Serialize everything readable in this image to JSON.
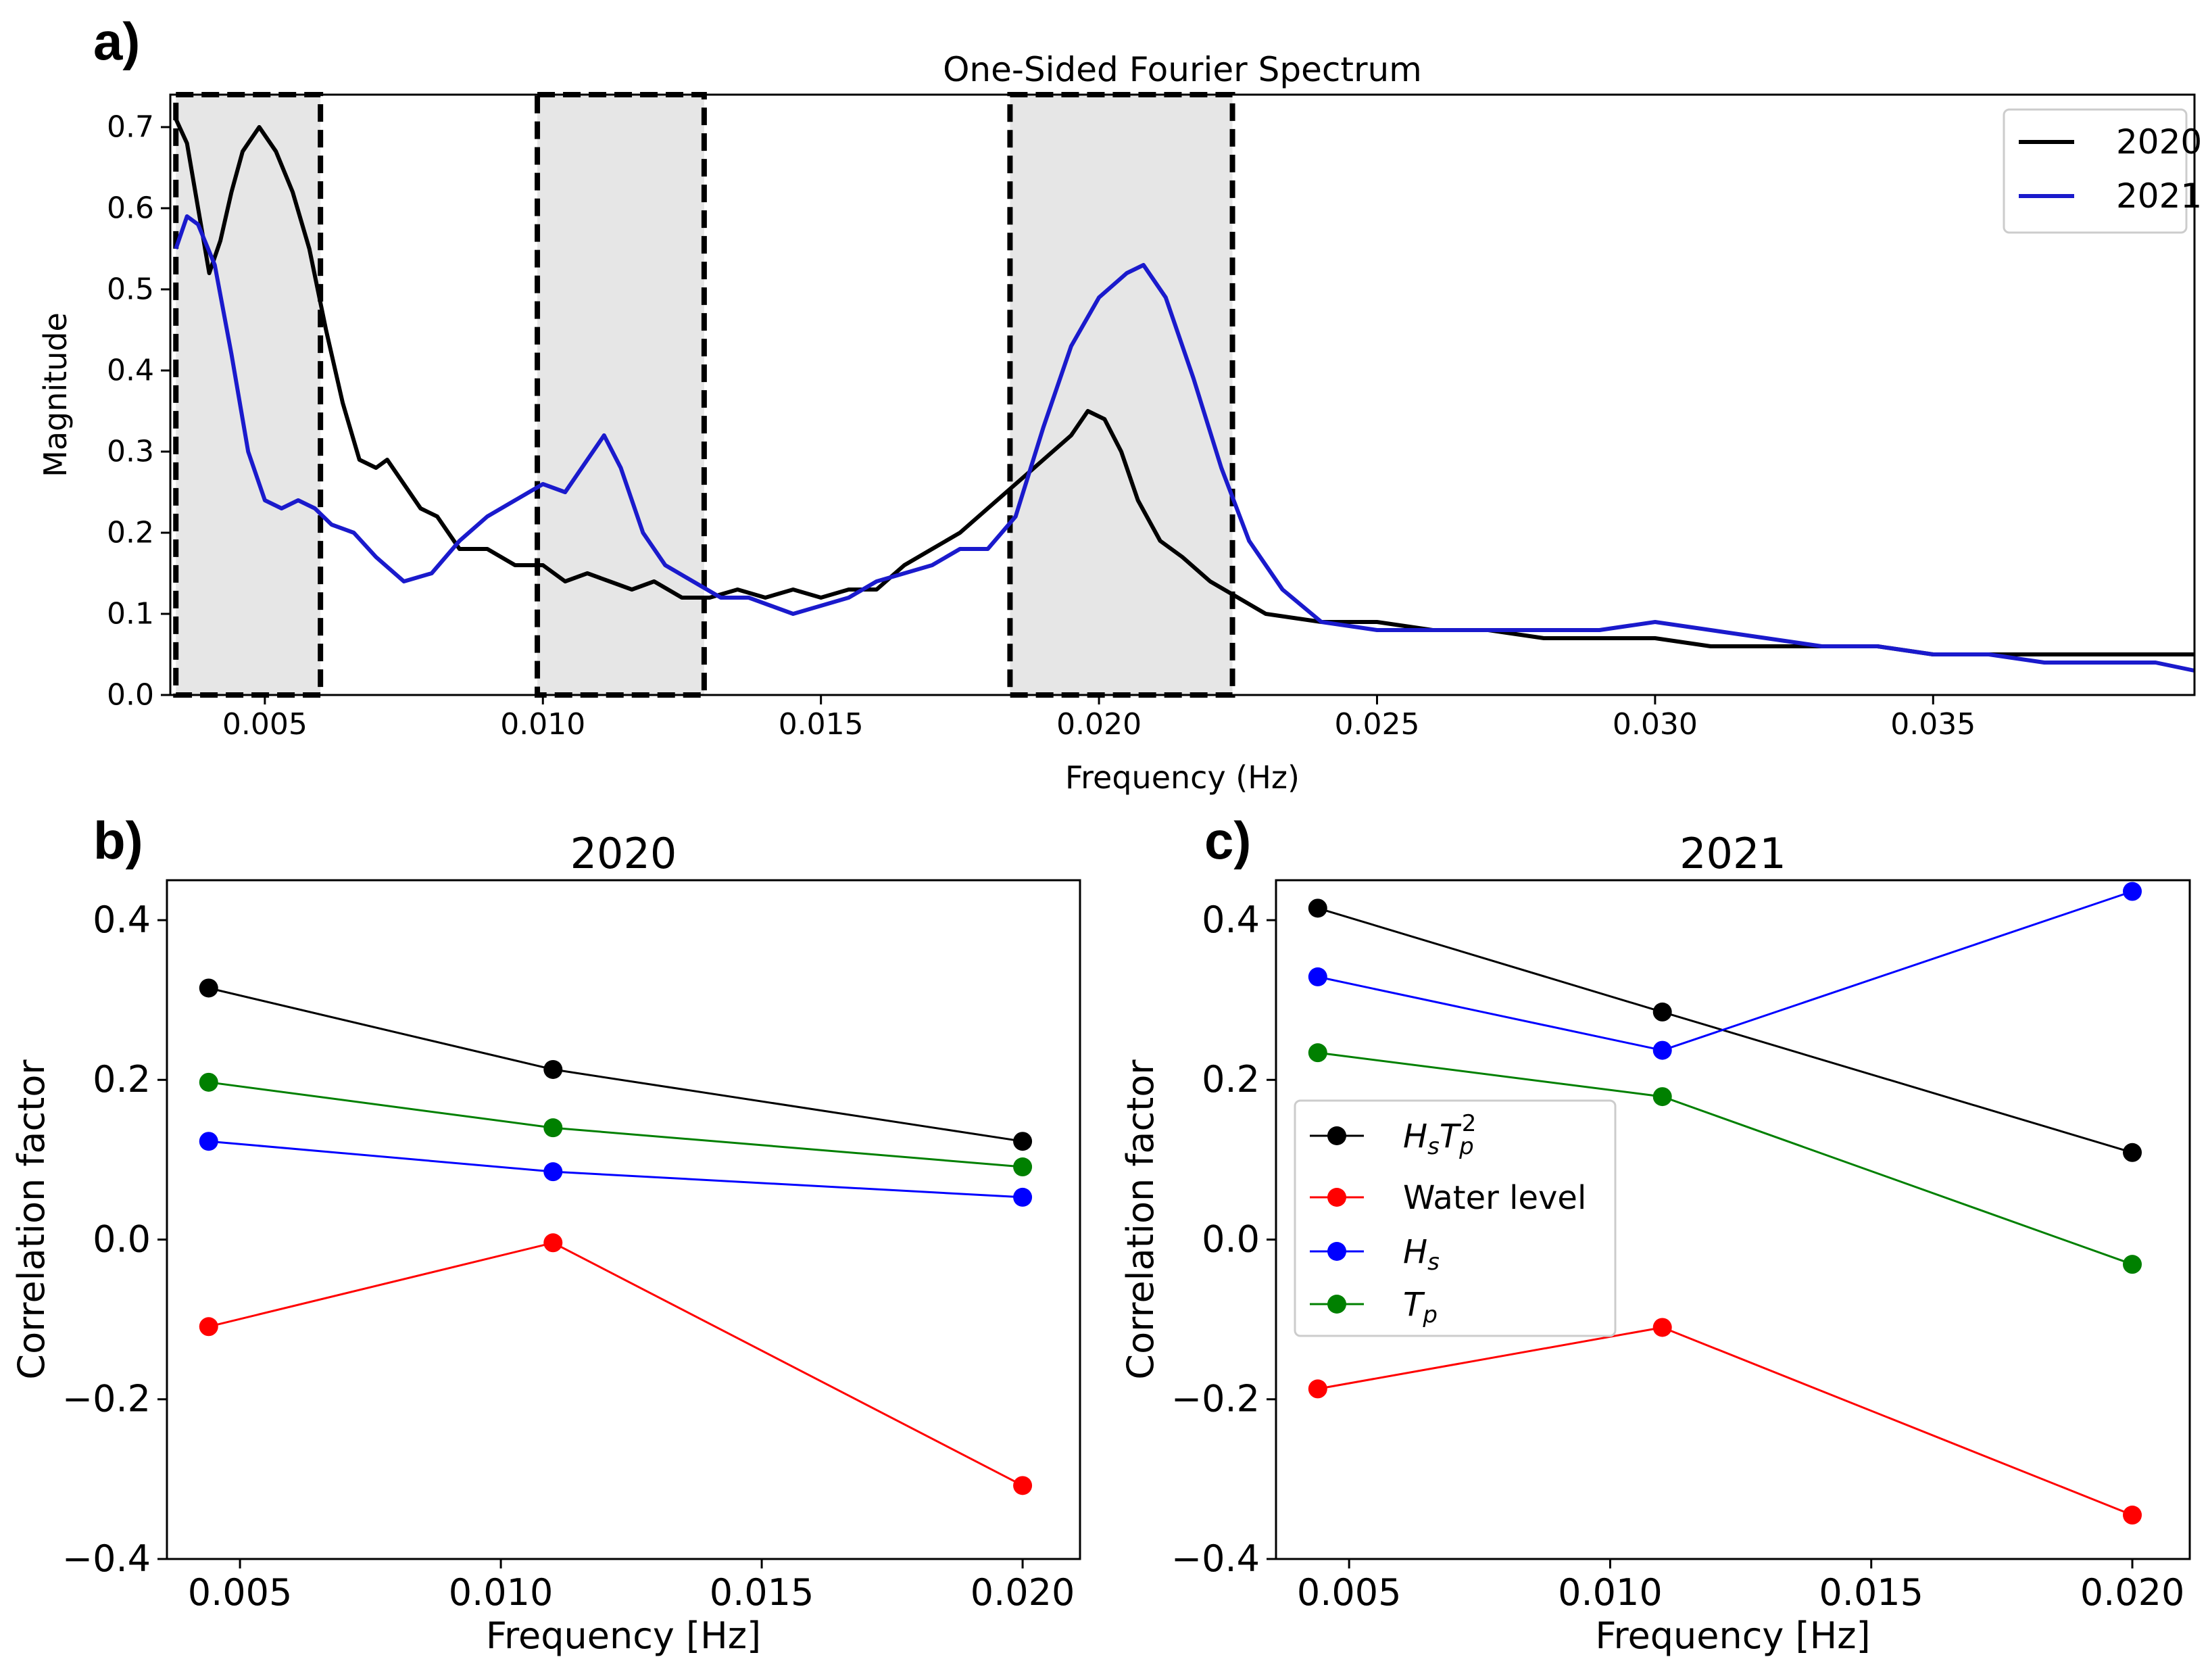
{
  "panels": {
    "a": {
      "label": "a)"
    },
    "b": {
      "label": "b)"
    },
    "c": {
      "label": "c)"
    }
  },
  "chart_data": [
    {
      "id": "a",
      "type": "line",
      "title": "One-Sided Fourier Spectrum",
      "xlabel": "Frequency (Hz)",
      "ylabel": "Magnitude",
      "xlim": [
        0.0033,
        0.0397
      ],
      "ylim": [
        0,
        0.74
      ],
      "xticks": [
        0.005,
        0.01,
        0.015,
        0.02,
        0.025,
        0.03,
        0.035
      ],
      "xtick_labels": [
        "0.005",
        "0.010",
        "0.015",
        "0.020",
        "0.025",
        "0.030",
        "0.035"
      ],
      "yticks": [
        0.0,
        0.1,
        0.2,
        0.3,
        0.4,
        0.5,
        0.6,
        0.7
      ],
      "ytick_labels": [
        "0.0",
        "0.1",
        "0.2",
        "0.3",
        "0.4",
        "0.5",
        "0.6",
        "0.7"
      ],
      "legend_position": "top-right",
      "shaded_bands": [
        [
          0.0034,
          0.006
        ],
        [
          0.0099,
          0.0129
        ],
        [
          0.0184,
          0.0224
        ]
      ],
      "series": [
        {
          "name": "2020",
          "color": "#000000",
          "points": [
            [
              0.0034,
              0.71
            ],
            [
              0.0036,
              0.68
            ],
            [
              0.0038,
              0.6
            ],
            [
              0.004,
              0.52
            ],
            [
              0.0042,
              0.56
            ],
            [
              0.0044,
              0.62
            ],
            [
              0.0046,
              0.67
            ],
            [
              0.0049,
              0.7
            ],
            [
              0.0052,
              0.67
            ],
            [
              0.0055,
              0.62
            ],
            [
              0.0058,
              0.55
            ],
            [
              0.0061,
              0.45
            ],
            [
              0.0064,
              0.36
            ],
            [
              0.0067,
              0.29
            ],
            [
              0.007,
              0.28
            ],
            [
              0.0072,
              0.29
            ],
            [
              0.0075,
              0.26
            ],
            [
              0.0078,
              0.23
            ],
            [
              0.0081,
              0.22
            ],
            [
              0.0085,
              0.18
            ],
            [
              0.009,
              0.18
            ],
            [
              0.0095,
              0.16
            ],
            [
              0.01,
              0.16
            ],
            [
              0.0104,
              0.14
            ],
            [
              0.0108,
              0.15
            ],
            [
              0.0112,
              0.14
            ],
            [
              0.0116,
              0.13
            ],
            [
              0.012,
              0.14
            ],
            [
              0.0125,
              0.12
            ],
            [
              0.013,
              0.12
            ],
            [
              0.0135,
              0.13
            ],
            [
              0.014,
              0.12
            ],
            [
              0.0145,
              0.13
            ],
            [
              0.015,
              0.12
            ],
            [
              0.0155,
              0.13
            ],
            [
              0.016,
              0.13
            ],
            [
              0.0165,
              0.16
            ],
            [
              0.017,
              0.18
            ],
            [
              0.0175,
              0.2
            ],
            [
              0.018,
              0.23
            ],
            [
              0.0185,
              0.26
            ],
            [
              0.019,
              0.29
            ],
            [
              0.0195,
              0.32
            ],
            [
              0.0198,
              0.35
            ],
            [
              0.0201,
              0.34
            ],
            [
              0.0204,
              0.3
            ],
            [
              0.0207,
              0.24
            ],
            [
              0.0211,
              0.19
            ],
            [
              0.0215,
              0.17
            ],
            [
              0.022,
              0.14
            ],
            [
              0.0225,
              0.12
            ],
            [
              0.023,
              0.1
            ],
            [
              0.024,
              0.09
            ],
            [
              0.025,
              0.09
            ],
            [
              0.026,
              0.08
            ],
            [
              0.027,
              0.08
            ],
            [
              0.028,
              0.07
            ],
            [
              0.029,
              0.07
            ],
            [
              0.03,
              0.07
            ],
            [
              0.031,
              0.06
            ],
            [
              0.032,
              0.06
            ],
            [
              0.033,
              0.06
            ],
            [
              0.034,
              0.06
            ],
            [
              0.035,
              0.05
            ],
            [
              0.036,
              0.05
            ],
            [
              0.037,
              0.05
            ],
            [
              0.038,
              0.05
            ],
            [
              0.039,
              0.05
            ],
            [
              0.0397,
              0.05
            ]
          ]
        },
        {
          "name": "2021",
          "color": "#1a1acc",
          "points": [
            [
              0.0034,
              0.55
            ],
            [
              0.0036,
              0.59
            ],
            [
              0.0038,
              0.58
            ],
            [
              0.0041,
              0.53
            ],
            [
              0.0044,
              0.42
            ],
            [
              0.0047,
              0.3
            ],
            [
              0.005,
              0.24
            ],
            [
              0.0053,
              0.23
            ],
            [
              0.0056,
              0.24
            ],
            [
              0.0059,
              0.23
            ],
            [
              0.0062,
              0.21
            ],
            [
              0.0066,
              0.2
            ],
            [
              0.007,
              0.17
            ],
            [
              0.0075,
              0.14
            ],
            [
              0.008,
              0.15
            ],
            [
              0.0085,
              0.19
            ],
            [
              0.009,
              0.22
            ],
            [
              0.0095,
              0.24
            ],
            [
              0.01,
              0.26
            ],
            [
              0.0104,
              0.25
            ],
            [
              0.0108,
              0.29
            ],
            [
              0.0111,
              0.32
            ],
            [
              0.0114,
              0.28
            ],
            [
              0.0118,
              0.2
            ],
            [
              0.0122,
              0.16
            ],
            [
              0.0127,
              0.14
            ],
            [
              0.0132,
              0.12
            ],
            [
              0.0137,
              0.12
            ],
            [
              0.0141,
              0.11
            ],
            [
              0.0145,
              0.1
            ],
            [
              0.015,
              0.11
            ],
            [
              0.0155,
              0.12
            ],
            [
              0.016,
              0.14
            ],
            [
              0.0165,
              0.15
            ],
            [
              0.017,
              0.16
            ],
            [
              0.0175,
              0.18
            ],
            [
              0.018,
              0.18
            ],
            [
              0.0185,
              0.22
            ],
            [
              0.019,
              0.33
            ],
            [
              0.0195,
              0.43
            ],
            [
              0.02,
              0.49
            ],
            [
              0.0205,
              0.52
            ],
            [
              0.0208,
              0.53
            ],
            [
              0.0212,
              0.49
            ],
            [
              0.0217,
              0.39
            ],
            [
              0.0222,
              0.28
            ],
            [
              0.0227,
              0.19
            ],
            [
              0.0233,
              0.13
            ],
            [
              0.024,
              0.09
            ],
            [
              0.025,
              0.08
            ],
            [
              0.026,
              0.08
            ],
            [
              0.027,
              0.08
            ],
            [
              0.028,
              0.08
            ],
            [
              0.029,
              0.08
            ],
            [
              0.03,
              0.09
            ],
            [
              0.031,
              0.08
            ],
            [
              0.032,
              0.07
            ],
            [
              0.033,
              0.06
            ],
            [
              0.034,
              0.06
            ],
            [
              0.035,
              0.05
            ],
            [
              0.036,
              0.05
            ],
            [
              0.037,
              0.04
            ],
            [
              0.038,
              0.04
            ],
            [
              0.039,
              0.04
            ],
            [
              0.0397,
              0.03
            ]
          ]
        }
      ]
    },
    {
      "id": "b",
      "type": "line",
      "title": "2020",
      "xlabel": "Frequency [Hz]",
      "ylabel": "Correlation factor",
      "xlim": [
        0.0036,
        0.0211
      ],
      "ylim": [
        -0.4,
        0.45
      ],
      "xticks": [
        0.005,
        0.01,
        0.015,
        0.02
      ],
      "xtick_labels": [
        "0.005",
        "0.010",
        "0.015",
        "0.020"
      ],
      "yticks": [
        -0.4,
        -0.2,
        0.0,
        0.2,
        0.4
      ],
      "ytick_labels": [
        "−0.4",
        "−0.2",
        "0.0",
        "0.2",
        "0.4"
      ],
      "x": [
        0.0044,
        0.011,
        0.02
      ],
      "series": [
        {
          "name": "HsTp2",
          "color": "#000000",
          "values": [
            0.315,
            0.213,
            0.123
          ]
        },
        {
          "name": "Water level",
          "color": "#ff0000",
          "values": [
            -0.109,
            -0.004,
            -0.308
          ]
        },
        {
          "name": "Hs",
          "color": "#0000ff",
          "values": [
            0.123,
            0.085,
            0.053
          ]
        },
        {
          "name": "Tp",
          "color": "#008000",
          "values": [
            0.197,
            0.14,
            0.091
          ]
        }
      ]
    },
    {
      "id": "c",
      "type": "line",
      "title": "2021",
      "xlabel": "Frequency [Hz]",
      "ylabel": "Correlation factor",
      "xlim": [
        0.0036,
        0.0211
      ],
      "ylim": [
        -0.4,
        0.45
      ],
      "xticks": [
        0.005,
        0.01,
        0.015,
        0.02
      ],
      "xtick_labels": [
        "0.005",
        "0.010",
        "0.015",
        "0.020"
      ],
      "yticks": [
        -0.4,
        -0.2,
        0.0,
        0.2,
        0.4
      ],
      "ytick_labels": [
        "−0.4",
        "−0.2",
        "0.0",
        "0.2",
        "0.4"
      ],
      "x": [
        0.0044,
        0.011,
        0.02
      ],
      "legend_position": "center-left",
      "series": [
        {
          "name": "HsTp2",
          "color": "#000000",
          "values": [
            0.415,
            0.285,
            0.109
          ]
        },
        {
          "name": "Water level",
          "color": "#ff0000",
          "values": [
            -0.187,
            -0.11,
            -0.345
          ]
        },
        {
          "name": "Hs",
          "color": "#0000ff",
          "values": [
            0.329,
            0.237,
            0.436
          ]
        },
        {
          "name": "Tp",
          "color": "#008000",
          "values": [
            0.234,
            0.179,
            -0.031
          ]
        }
      ]
    }
  ],
  "legend_c_labels": {
    "HsTp2": {
      "H": "H",
      "sub_s": "s",
      "T": "T",
      "sub_p": "p",
      "sup_2": "2"
    },
    "Water level": {
      "text": "Water level"
    },
    "Hs": {
      "H": "H",
      "sub_s": "s"
    },
    "Tp": {
      "T": "T",
      "sub_p": "p"
    }
  }
}
